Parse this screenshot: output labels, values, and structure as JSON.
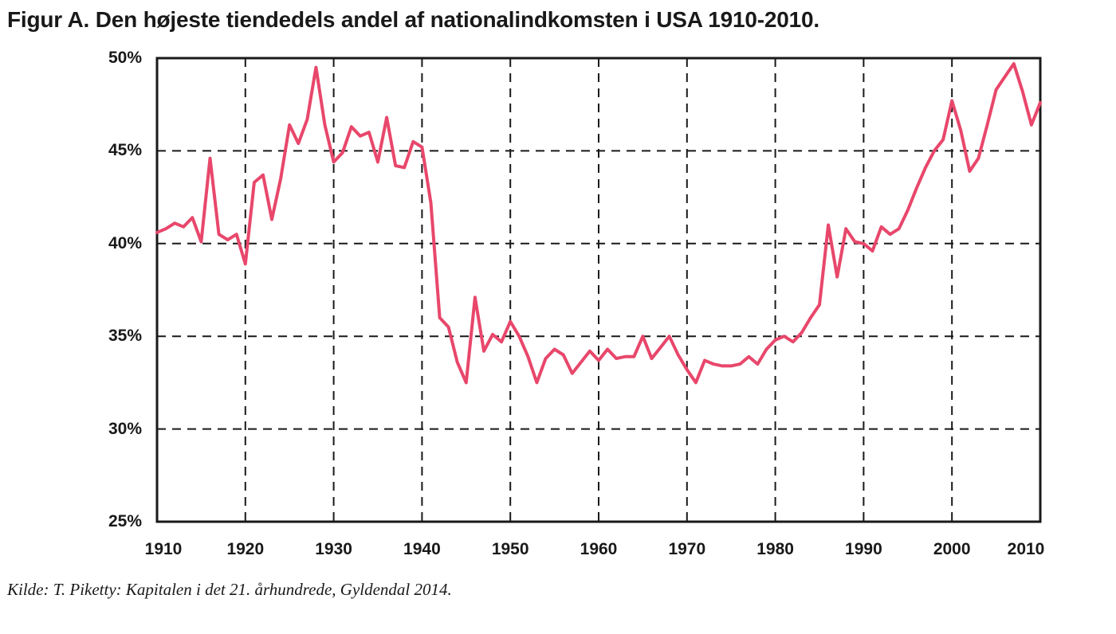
{
  "figure": {
    "title": "Figur A. Den højeste tiendedels andel af nationalindkomsten i USA 1910-2010.",
    "source": "Kilde: T. Piketty: Kapitalen i det 21. århundrede, Gyldendal 2014."
  },
  "chart_data": {
    "type": "line",
    "title": "Figur A. Den højeste tiendedels andel af nationalindkomsten i USA 1910-2010.",
    "series_name": "Den højeste tiendedels andel af nationalindkomsten",
    "xlabel": "",
    "ylabel": "",
    "xlim": [
      1910,
      2010
    ],
    "ylim": [
      25,
      50
    ],
    "grid": "dashed",
    "legend": "none",
    "line_color": "#e8476b",
    "axis_color": "#191919",
    "x_ticks": [
      1910,
      1920,
      1930,
      1940,
      1950,
      1960,
      1970,
      1980,
      1990,
      2000,
      2010
    ],
    "x_tick_labels": [
      "1910",
      "1920",
      "1930",
      "1940",
      "1950",
      "1960",
      "1970",
      "1980",
      "1990",
      "2000",
      "2010"
    ],
    "y_ticks": [
      25,
      30,
      35,
      40,
      45,
      50
    ],
    "y_tick_labels": [
      "25%",
      "30%",
      "35%",
      "40%",
      "45%",
      "50%"
    ],
    "years": [
      1910,
      1911,
      1912,
      1913,
      1914,
      1915,
      1916,
      1917,
      1918,
      1919,
      1920,
      1921,
      1922,
      1923,
      1924,
      1925,
      1926,
      1927,
      1928,
      1929,
      1930,
      1931,
      1932,
      1933,
      1934,
      1935,
      1936,
      1937,
      1938,
      1939,
      1940,
      1941,
      1942,
      1943,
      1944,
      1945,
      1946,
      1947,
      1948,
      1949,
      1950,
      1951,
      1952,
      1953,
      1954,
      1955,
      1956,
      1957,
      1958,
      1959,
      1960,
      1961,
      1962,
      1963,
      1964,
      1965,
      1966,
      1967,
      1968,
      1969,
      1970,
      1971,
      1972,
      1973,
      1974,
      1975,
      1976,
      1977,
      1978,
      1979,
      1980,
      1981,
      1982,
      1983,
      1984,
      1985,
      1986,
      1987,
      1988,
      1989,
      1990,
      1991,
      1992,
      1993,
      1994,
      1995,
      1996,
      1997,
      1998,
      1999,
      2000,
      2001,
      2002,
      2003,
      2004,
      2005,
      2006,
      2007,
      2008,
      2009,
      2010
    ],
    "values": [
      40.6,
      40.8,
      41.1,
      40.9,
      41.4,
      40.1,
      44.6,
      40.5,
      40.2,
      40.5,
      38.9,
      43.3,
      43.7,
      41.3,
      43.5,
      46.4,
      45.4,
      46.7,
      49.5,
      46.4,
      44.4,
      44.9,
      46.3,
      45.8,
      46.0,
      44.4,
      46.8,
      44.2,
      44.1,
      45.5,
      45.2,
      42.2,
      36.0,
      35.5,
      33.6,
      32.5,
      37.1,
      34.2,
      35.1,
      34.7,
      35.8,
      35.0,
      33.9,
      32.5,
      33.8,
      34.3,
      34.0,
      33.0,
      33.6,
      34.2,
      33.7,
      34.3,
      33.8,
      33.9,
      33.9,
      35.0,
      33.8,
      34.4,
      35.0,
      34.0,
      33.2,
      32.5,
      33.7,
      33.5,
      33.4,
      33.4,
      33.5,
      33.9,
      33.5,
      34.3,
      34.8,
      35.0,
      34.7,
      35.2,
      36.0,
      36.7,
      41.0,
      38.2,
      40.8,
      40.1,
      40.0,
      39.6,
      40.9,
      40.5,
      40.8,
      41.8,
      43.0,
      44.1,
      45.0,
      45.6,
      47.7,
      46.1,
      43.9,
      44.6,
      46.4,
      48.3,
      49.0,
      49.7,
      48.2,
      46.4,
      47.6
    ]
  }
}
